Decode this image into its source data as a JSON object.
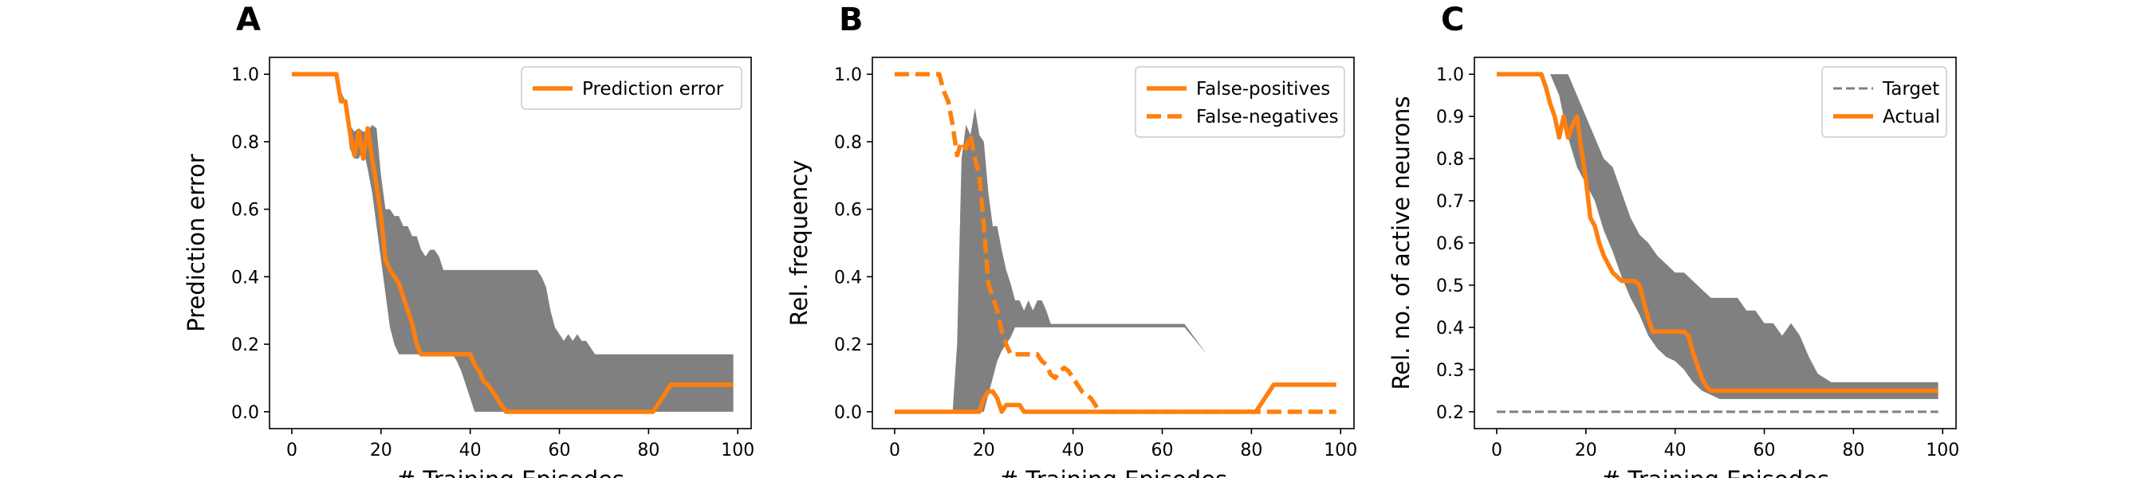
{
  "colors": {
    "line": "#ff7f0e",
    "band": "#808080",
    "target": "#808080",
    "axis": "#000000"
  },
  "chart_data": [
    {
      "panel": "A",
      "type": "line",
      "xlabel": "# Training Episodes",
      "ylabel": "Prediction error",
      "xlim": [
        -5,
        103
      ],
      "ylim": [
        -0.05,
        1.05
      ],
      "xticks": [
        0,
        20,
        40,
        60,
        80,
        100
      ],
      "yticks": [
        0.0,
        0.2,
        0.4,
        0.6,
        0.8,
        1.0
      ],
      "ytick_decimals": 1,
      "legend_position": "top-right",
      "band": {
        "x": [
          0,
          10,
          11,
          12,
          13,
          14,
          15,
          16,
          17,
          18,
          19,
          20,
          21,
          22,
          23,
          24,
          25,
          26,
          27,
          28,
          29,
          30,
          31,
          32,
          33,
          34,
          35,
          36,
          37,
          38,
          39,
          40,
          41,
          42,
          43,
          44,
          45,
          46,
          47,
          48,
          49,
          50,
          55,
          56,
          57,
          58,
          59,
          60,
          61,
          62,
          63,
          64,
          65,
          66,
          67,
          68,
          69,
          70,
          75,
          80,
          85,
          90,
          95,
          99
        ],
        "upper": [
          1.0,
          1.0,
          0.95,
          0.92,
          0.85,
          0.83,
          0.84,
          0.83,
          0.83,
          0.85,
          0.84,
          0.7,
          0.6,
          0.6,
          0.58,
          0.58,
          0.55,
          0.55,
          0.52,
          0.52,
          0.48,
          0.46,
          0.48,
          0.48,
          0.46,
          0.42,
          0.42,
          0.42,
          0.42,
          0.42,
          0.42,
          0.42,
          0.42,
          0.42,
          0.42,
          0.42,
          0.42,
          0.42,
          0.42,
          0.42,
          0.42,
          0.42,
          0.42,
          0.4,
          0.37,
          0.3,
          0.25,
          0.23,
          0.21,
          0.23,
          0.21,
          0.23,
          0.21,
          0.21,
          0.19,
          0.17,
          0.17,
          0.17,
          0.17,
          0.17,
          0.17,
          0.17,
          0.17,
          0.17
        ],
        "lower": [
          1.0,
          1.0,
          0.95,
          0.9,
          0.78,
          0.75,
          0.75,
          0.78,
          0.72,
          0.65,
          0.55,
          0.45,
          0.35,
          0.25,
          0.2,
          0.17,
          0.17,
          0.17,
          0.17,
          0.17,
          0.17,
          0.17,
          0.17,
          0.17,
          0.17,
          0.17,
          0.17,
          0.17,
          0.15,
          0.12,
          0.08,
          0.04,
          0.0,
          0.0,
          0.0,
          0.0,
          0.0,
          0.0,
          0.0,
          0.0,
          0.0,
          0.0,
          0.0,
          0.0,
          0.0,
          0.0,
          0.0,
          0.0,
          0.0,
          0.0,
          0.0,
          0.0,
          0.0,
          0.0,
          0.0,
          0.0,
          0.0,
          0.0,
          0.0,
          0.0,
          0.0,
          0.0,
          0.0,
          0.0
        ]
      },
      "series": [
        {
          "name": "Prediction error",
          "style": "solid",
          "x": [
            0,
            10,
            11,
            12,
            13,
            14,
            15,
            16,
            17,
            18,
            19,
            20,
            21,
            22,
            23,
            24,
            25,
            26,
            27,
            28,
            29,
            30,
            31,
            32,
            33,
            34,
            35,
            36,
            37,
            38,
            39,
            40,
            41,
            42,
            43,
            44,
            45,
            46,
            47,
            48,
            49,
            50,
            60,
            70,
            80,
            81,
            82,
            83,
            84,
            85,
            90,
            99
          ],
          "y": [
            1.0,
            1.0,
            0.92,
            0.92,
            0.83,
            0.76,
            0.83,
            0.75,
            0.84,
            0.75,
            0.67,
            0.58,
            0.45,
            0.42,
            0.4,
            0.38,
            0.34,
            0.3,
            0.26,
            0.2,
            0.17,
            0.17,
            0.17,
            0.17,
            0.17,
            0.17,
            0.17,
            0.17,
            0.17,
            0.17,
            0.17,
            0.17,
            0.14,
            0.12,
            0.09,
            0.08,
            0.06,
            0.04,
            0.02,
            0.0,
            0.0,
            0.0,
            0.0,
            0.0,
            0.0,
            0.0,
            0.02,
            0.04,
            0.06,
            0.08,
            0.08,
            0.08
          ]
        }
      ]
    },
    {
      "panel": "B",
      "type": "line",
      "xlabel": "# Training Episodes",
      "ylabel": "Rel. frequency",
      "xlim": [
        -5,
        103
      ],
      "ylim": [
        -0.05,
        1.05
      ],
      "xticks": [
        0,
        20,
        40,
        60,
        80,
        100
      ],
      "yticks": [
        0.0,
        0.2,
        0.4,
        0.6,
        0.8,
        1.0
      ],
      "ytick_decimals": 1,
      "legend_position": "top-right",
      "band": {
        "x": [
          0,
          10,
          12,
          13,
          14,
          15,
          16,
          17,
          18,
          19,
          20,
          21,
          22,
          23,
          24,
          25,
          26,
          27,
          28,
          29,
          30,
          31,
          32,
          33,
          34,
          35,
          36,
          37,
          38,
          39,
          40,
          45,
          50,
          55,
          60,
          65,
          70,
          75,
          80,
          85,
          90,
          95,
          99
        ],
        "upper": [
          0.0,
          0.0,
          0.0,
          0.0,
          0.2,
          0.75,
          0.85,
          0.82,
          0.9,
          0.82,
          0.8,
          0.65,
          0.55,
          0.55,
          0.48,
          0.42,
          0.38,
          0.33,
          0.33,
          0.3,
          0.33,
          0.3,
          0.33,
          0.33,
          0.3,
          0.26,
          0.26,
          0.26,
          0.26,
          0.26,
          0.26,
          0.26,
          0.26,
          0.26,
          0.26,
          0.26,
          0.17,
          0.17,
          0.17,
          0.17,
          0.17,
          0.17,
          0.17
        ],
        "lower": [
          0.0,
          0.0,
          0.0,
          0.0,
          0.0,
          0.0,
          0.0,
          0.0,
          0.0,
          0.0,
          0.0,
          0.05,
          0.1,
          0.15,
          0.18,
          0.2,
          0.22,
          0.25,
          0.25,
          0.25,
          0.25,
          0.25,
          0.25,
          0.25,
          0.25,
          0.25,
          0.25,
          0.25,
          0.25,
          0.25,
          0.25,
          0.25,
          0.25,
          0.25,
          0.25,
          0.25,
          0.17,
          0.17,
          0.17,
          0.17,
          0.17,
          0.17,
          0.17
        ]
      },
      "series": [
        {
          "name": "False-positives",
          "style": "solid",
          "x": [
            0,
            10,
            19,
            20,
            21,
            22,
            23,
            24,
            25,
            26,
            27,
            28,
            29,
            30,
            31,
            80,
            81,
            82,
            83,
            84,
            85,
            90,
            99
          ],
          "y": [
            0.0,
            0.0,
            0.0,
            0.04,
            0.06,
            0.06,
            0.04,
            0.0,
            0.02,
            0.02,
            0.02,
            0.02,
            0.0,
            0.0,
            0.0,
            0.0,
            0.0,
            0.02,
            0.04,
            0.06,
            0.08,
            0.08,
            0.08
          ]
        },
        {
          "name": "False-negatives",
          "style": "dashed",
          "x": [
            0,
            10,
            11,
            12,
            13,
            14,
            15,
            16,
            17,
            18,
            19,
            20,
            21,
            22,
            23,
            24,
            25,
            26,
            27,
            28,
            29,
            30,
            31,
            32,
            33,
            34,
            35,
            36,
            37,
            38,
            39,
            40,
            41,
            42,
            43,
            44,
            45,
            46,
            47,
            48,
            49,
            50,
            60,
            70,
            80,
            90,
            99
          ],
          "y": [
            1.0,
            1.0,
            0.95,
            0.92,
            0.85,
            0.76,
            0.8,
            0.78,
            0.82,
            0.75,
            0.7,
            0.55,
            0.38,
            0.34,
            0.3,
            0.24,
            0.2,
            0.17,
            0.17,
            0.17,
            0.17,
            0.17,
            0.17,
            0.17,
            0.15,
            0.14,
            0.11,
            0.1,
            0.12,
            0.13,
            0.12,
            0.1,
            0.08,
            0.06,
            0.05,
            0.04,
            0.02,
            0.0,
            0.0,
            0.0,
            0.0,
            0.0,
            0.0,
            0.0,
            0.0,
            0.0,
            0.0
          ]
        }
      ]
    },
    {
      "panel": "C",
      "type": "line",
      "xlabel": "# Training Episodes",
      "ylabel": "Rel. no. of active neurons",
      "xlim": [
        -5,
        103
      ],
      "ylim": [
        0.16,
        1.04
      ],
      "xticks": [
        0,
        20,
        40,
        60,
        80,
        100
      ],
      "yticks": [
        0.2,
        0.3,
        0.4,
        0.5,
        0.6,
        0.7,
        0.8,
        0.9,
        1.0
      ],
      "ytick_decimals": 1,
      "legend_position": "top-right",
      "band": {
        "x": [
          0,
          10,
          12,
          14,
          16,
          18,
          20,
          22,
          24,
          26,
          28,
          30,
          32,
          34,
          36,
          38,
          40,
          42,
          44,
          46,
          48,
          50,
          52,
          54,
          56,
          58,
          60,
          62,
          64,
          66,
          68,
          70,
          72,
          75,
          80,
          90,
          99
        ],
        "upper": [
          1.0,
          1.0,
          1.0,
          1.0,
          1.0,
          0.95,
          0.9,
          0.85,
          0.8,
          0.78,
          0.72,
          0.66,
          0.62,
          0.6,
          0.57,
          0.55,
          0.53,
          0.53,
          0.51,
          0.49,
          0.47,
          0.47,
          0.47,
          0.47,
          0.44,
          0.44,
          0.41,
          0.41,
          0.38,
          0.41,
          0.38,
          0.33,
          0.29,
          0.27,
          0.27,
          0.27,
          0.27
        ],
        "lower": [
          1.0,
          1.0,
          1.0,
          0.95,
          0.85,
          0.78,
          0.74,
          0.7,
          0.63,
          0.58,
          0.52,
          0.47,
          0.43,
          0.38,
          0.35,
          0.33,
          0.32,
          0.3,
          0.27,
          0.25,
          0.24,
          0.23,
          0.23,
          0.23,
          0.23,
          0.23,
          0.23,
          0.23,
          0.23,
          0.23,
          0.23,
          0.23,
          0.23,
          0.23,
          0.23,
          0.23,
          0.23
        ]
      },
      "series": [
        {
          "name": "Target",
          "style": "dashed-thin",
          "x": [
            0,
            99
          ],
          "y": [
            0.2,
            0.2
          ]
        },
        {
          "name": "Actual",
          "style": "solid",
          "x": [
            0,
            10,
            11,
            12,
            13,
            14,
            15,
            16,
            17,
            18,
            19,
            20,
            21,
            22,
            23,
            24,
            25,
            26,
            27,
            28,
            29,
            30,
            31,
            32,
            33,
            34,
            35,
            36,
            37,
            38,
            39,
            40,
            41,
            42,
            43,
            44,
            45,
            46,
            47,
            48,
            49,
            50,
            60,
            70,
            80,
            90,
            99
          ],
          "y": [
            1.0,
            1.0,
            0.97,
            0.93,
            0.9,
            0.85,
            0.9,
            0.85,
            0.88,
            0.9,
            0.82,
            0.75,
            0.66,
            0.64,
            0.6,
            0.57,
            0.55,
            0.53,
            0.52,
            0.51,
            0.51,
            0.51,
            0.51,
            0.5,
            0.46,
            0.42,
            0.39,
            0.39,
            0.39,
            0.39,
            0.39,
            0.39,
            0.39,
            0.39,
            0.38,
            0.34,
            0.31,
            0.28,
            0.26,
            0.25,
            0.25,
            0.25,
            0.25,
            0.25,
            0.25,
            0.25,
            0.25
          ]
        }
      ]
    }
  ]
}
